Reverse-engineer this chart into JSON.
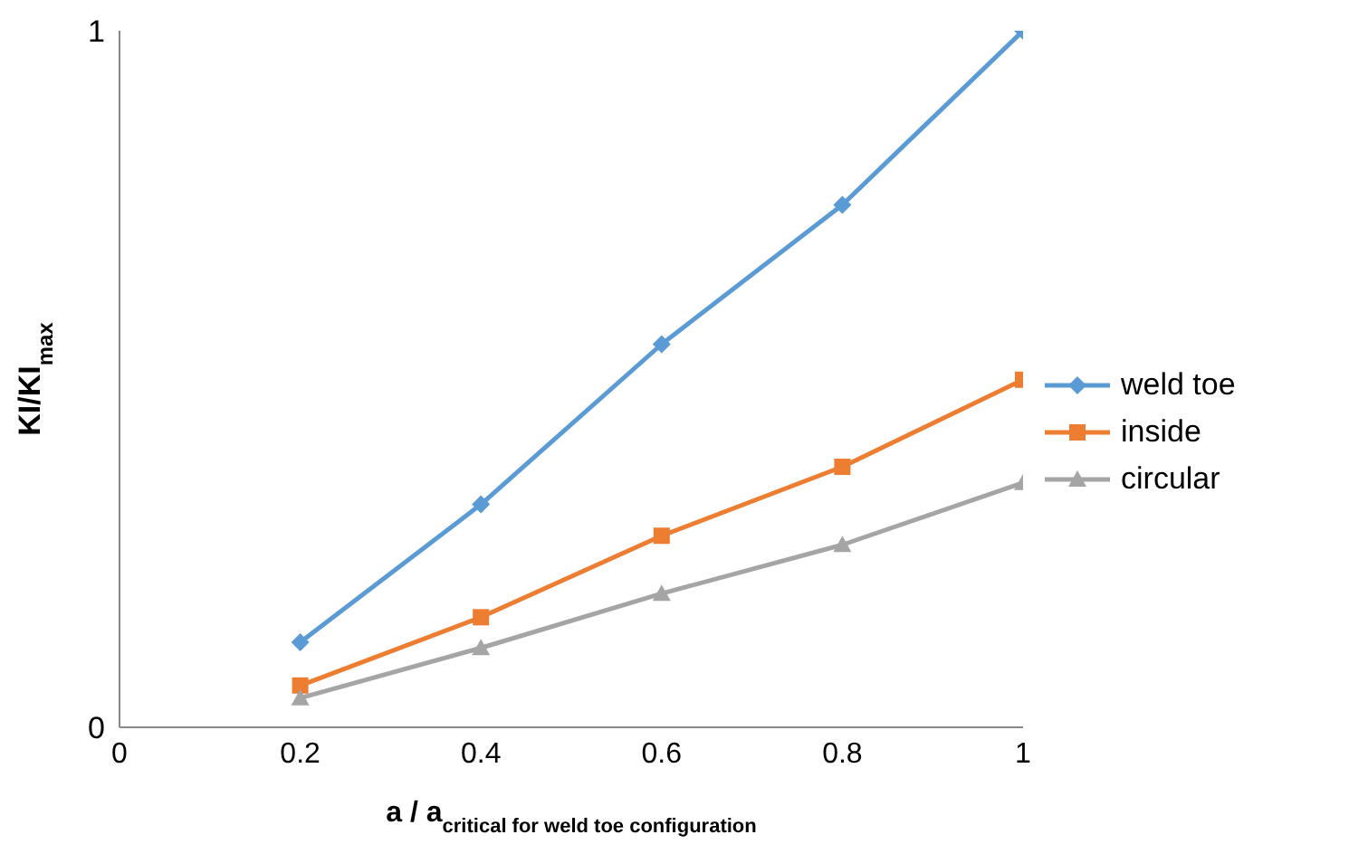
{
  "chart_data": {
    "type": "line",
    "xlabel": "a / a$_{critical for weld toe configuration}$",
    "ylabel": "KI/KI$_{max}$",
    "x": [
      0.2,
      0.4,
      0.6,
      0.8,
      1
    ],
    "series": [
      {
        "name": "weld toe",
        "color": "#5b9bd5",
        "marker": "diamond",
        "values": [
          0.122,
          0.32,
          0.55,
          0.75,
          1.0
        ]
      },
      {
        "name": "inside",
        "color": "#ed7d31",
        "marker": "square",
        "values": [
          0.06,
          0.158,
          0.275,
          0.374,
          0.499
        ]
      },
      {
        "name": "circular",
        "color": "#a5a5a5",
        "marker": "triangle",
        "values": [
          0.042,
          0.114,
          0.192,
          0.262,
          0.351
        ]
      }
    ],
    "xlim": [
      0,
      1
    ],
    "xticks": [
      0,
      0.2,
      0.4,
      0.6,
      0.8,
      1
    ],
    "ylim": [
      0,
      1
    ],
    "yticks": [
      0,
      1
    ],
    "grid": false,
    "legend": "right"
  }
}
